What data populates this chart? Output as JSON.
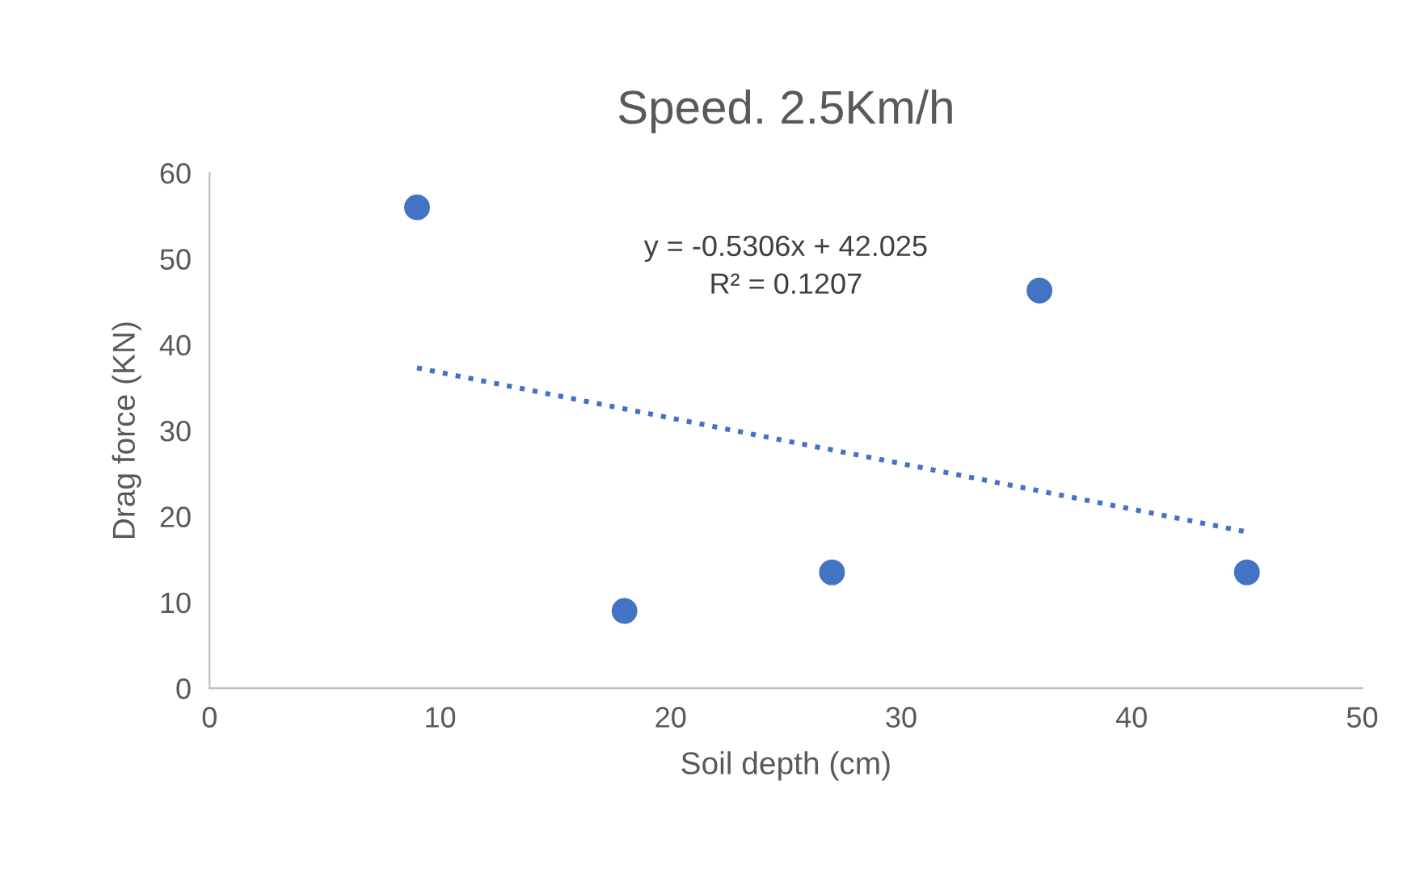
{
  "chart_data": {
    "type": "scatter",
    "title": "Speed. 2.5Km/h",
    "xlabel": "Soil depth (cm)",
    "ylabel": "Drag force (KN)",
    "xlim": [
      0,
      50
    ],
    "xticks": [
      0,
      10,
      20,
      30,
      40,
      50
    ],
    "ylim": [
      0,
      60
    ],
    "yticks": [
      0,
      10,
      20,
      30,
      40,
      50,
      60
    ],
    "grid": false,
    "marker": "circle",
    "series": [
      {
        "color": "#4472c4",
        "x": [
          9,
          18,
          27,
          36,
          45
        ],
        "values": [
          56,
          9,
          13.5,
          46.3,
          13.5
        ]
      },
      {
        "type": "line",
        "color": "#4472c4",
        "line_style": "dotted",
        "marker": "none",
        "x": [
          9,
          45
        ],
        "values": [
          37.3,
          18.2
        ]
      }
    ],
    "annotations": [
      "y = -0.5306x + 42.025\nR² = 0.1207"
    ]
  }
}
